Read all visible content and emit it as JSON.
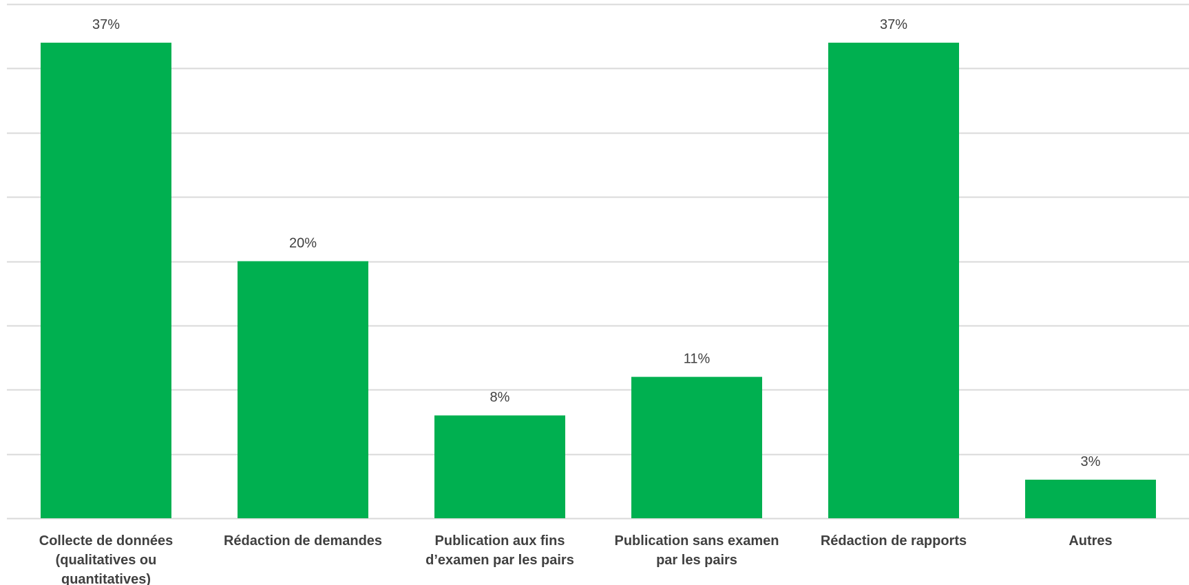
{
  "chart_data": {
    "type": "bar",
    "categories": [
      [
        "Collecte de données",
        "(qualitatives ou",
        "quantitatives)"
      ],
      [
        "Rédaction de demandes"
      ],
      [
        "Publication aux fins",
        "d’examen par les pairs"
      ],
      [
        "Publication sans examen",
        "par les pairs"
      ],
      [
        "Rédaction de rapports"
      ],
      [
        "Autres"
      ]
    ],
    "values": [
      37,
      20,
      8,
      11,
      37,
      3
    ],
    "data_labels": [
      "37%",
      "20%",
      "8%",
      "11%",
      "37%",
      "3%"
    ],
    "ylim": [
      0,
      40
    ],
    "grid": true,
    "bar_color": "#00b050"
  }
}
